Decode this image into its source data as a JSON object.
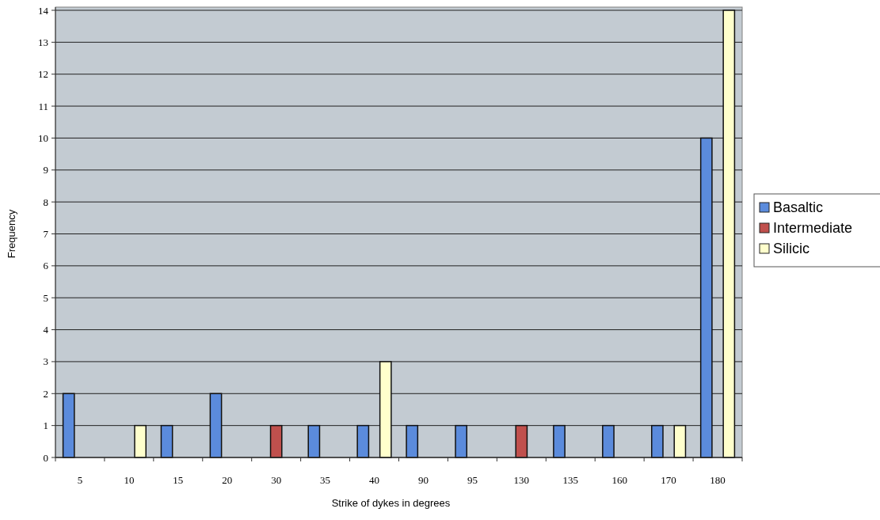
{
  "chart_data": {
    "type": "bar",
    "xlabel": "Strike of dykes in degrees",
    "ylabel": "Frequency",
    "categories": [
      "5",
      "10",
      "15",
      "20",
      "30",
      "35",
      "40",
      "90",
      "95",
      "130",
      "135",
      "160",
      "170",
      "180"
    ],
    "series": [
      {
        "name": "Basaltic",
        "color": "#5b8bdc",
        "values": [
          2,
          0,
          1,
          2,
          0,
          1,
          1,
          1,
          1,
          0,
          1,
          1,
          1,
          10
        ]
      },
      {
        "name": "Intermediate",
        "color": "#c0504d",
        "values": [
          0,
          0,
          0,
          0,
          1,
          0,
          0,
          0,
          0,
          1,
          0,
          0,
          0,
          0
        ]
      },
      {
        "name": "Silicic",
        "color": "#ffffcc",
        "values": [
          0,
          1,
          0,
          0,
          0,
          0,
          3,
          0,
          0,
          0,
          0,
          0,
          1,
          14
        ]
      }
    ],
    "ylim": [
      0,
      14
    ],
    "yticks": [
      0,
      1,
      2,
      3,
      4,
      5,
      6,
      7,
      8,
      9,
      10,
      11,
      12,
      13,
      14
    ],
    "grid": "y",
    "legend": "right"
  }
}
